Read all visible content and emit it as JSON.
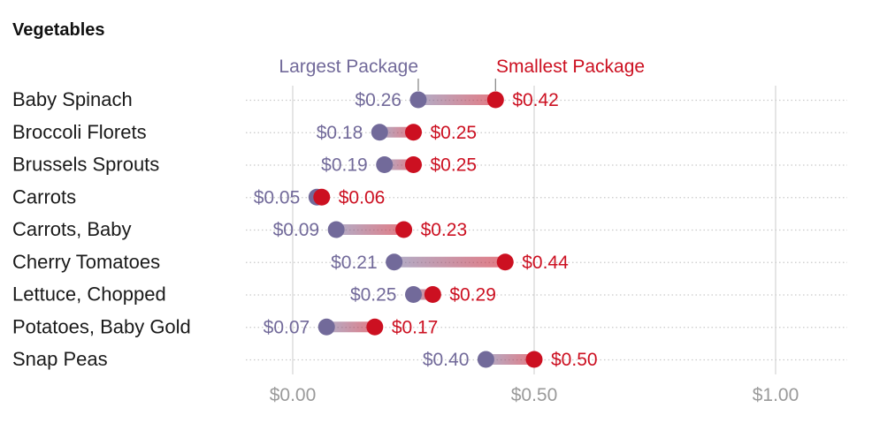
{
  "chart_data": {
    "type": "dumbbell",
    "title": "Vegetables",
    "x_ticks": [
      "$0.00",
      "$0.50",
      "$1.00"
    ],
    "xlim": [
      0,
      1.15
    ],
    "grid": "vertical",
    "legend": {
      "largest_label": "Largest Package",
      "smallest_label": "Smallest Package",
      "largest_color": "#726a9a",
      "smallest_color": "#cc1021"
    },
    "categories": [
      "Baby Spinach",
      "Broccoli Florets",
      "Brussels Sprouts",
      "Carrots",
      "Carrots, Baby",
      "Cherry Tomatoes",
      "Lettuce, Chopped",
      "Potatoes, Baby Gold",
      "Snap Peas"
    ],
    "series": [
      {
        "name": "Largest Package",
        "values": [
          0.26,
          0.18,
          0.19,
          0.05,
          0.09,
          0.21,
          0.25,
          0.07,
          0.4
        ],
        "labels": [
          "$0.26",
          "$0.18",
          "$0.19",
          "$0.05",
          "$0.09",
          "$0.21",
          "$0.25",
          "$0.07",
          "$0.40"
        ]
      },
      {
        "name": "Smallest Package",
        "values": [
          0.42,
          0.25,
          0.25,
          0.06,
          0.23,
          0.44,
          0.29,
          0.17,
          0.5
        ],
        "labels": [
          "$0.42",
          "$0.25",
          "$0.25",
          "$0.06",
          "$0.23",
          "$0.44",
          "$0.29",
          "$0.17",
          "$0.50"
        ]
      }
    ]
  }
}
